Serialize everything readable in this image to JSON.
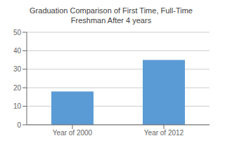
{
  "chart_data": {
    "type": "bar",
    "title": "Graduation Comparison of First Time, Full-Time\nFreshman After 4 years",
    "categories": [
      "Year of 2000",
      "Year of 2012"
    ],
    "values": [
      18,
      35
    ],
    "color": "#5B9BD5",
    "ylim": [
      0,
      50
    ],
    "yticks": [
      0,
      10,
      20,
      30,
      40,
      50
    ],
    "grid": true
  }
}
